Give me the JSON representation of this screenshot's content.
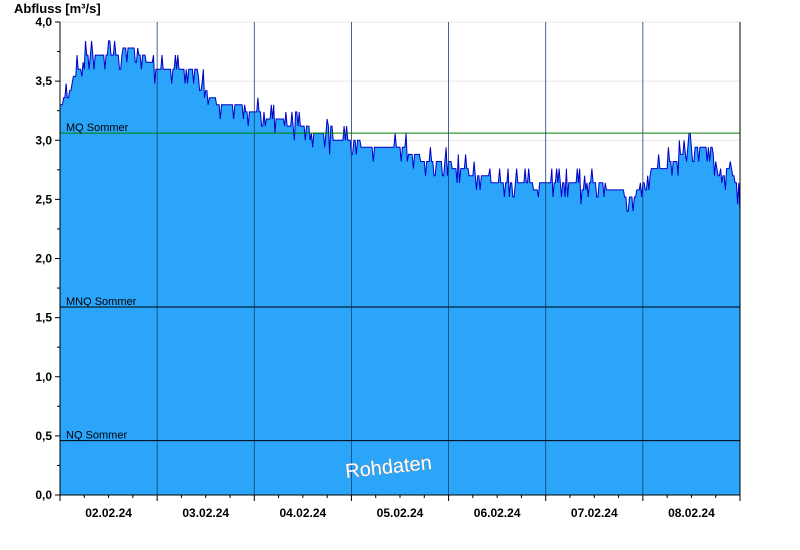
{
  "chart_data": {
    "type": "area",
    "ylabel": "Abfluss [m³/s]",
    "ylim": [
      0,
      4.0
    ],
    "yticks": [
      "0,0",
      "0,5",
      "1,0",
      "1,5",
      "2,0",
      "2,5",
      "3,0",
      "3,5",
      "4,0"
    ],
    "ytick_values": [
      0,
      0.5,
      1.0,
      1.5,
      2.0,
      2.5,
      3.0,
      3.5,
      4.0
    ],
    "xlim_days": [
      0,
      7
    ],
    "xtick_labels": [
      "02.02.24",
      "03.02.24",
      "04.02.24",
      "05.02.24",
      "06.02.24",
      "07.02.24",
      "08.02.24"
    ],
    "reference_lines": [
      {
        "label": "MQ Sommer",
        "value": 3.06,
        "color": "#008000"
      },
      {
        "label": "MNQ Sommer",
        "value": 1.59,
        "color": "#000000"
      },
      {
        "label": "NQ Sommer",
        "value": 0.46,
        "color": "#000000"
      }
    ],
    "watermark": "Rohdaten",
    "colors": {
      "fill": "#2aa5fa",
      "line": "#0000c8",
      "grid": "#1e3c7a"
    },
    "series": [
      {
        "x": [
          0.0,
          0.1,
          0.15,
          0.2,
          0.25,
          0.35,
          0.55,
          0.65,
          0.8,
          1.0,
          1.2,
          1.4,
          1.55,
          1.7,
          1.85,
          2.0,
          2.15,
          2.3,
          2.45,
          2.55,
          2.7,
          2.85,
          3.0,
          3.15,
          3.3,
          3.5,
          3.7,
          3.85,
          4.0,
          4.15,
          4.3,
          4.5,
          4.6,
          4.75,
          4.9,
          5.0,
          5.2,
          5.4,
          5.5,
          5.65,
          5.8,
          5.9,
          6.0,
          6.1,
          6.3,
          6.5,
          6.7,
          6.8,
          6.9,
          7.0
        ],
        "y": [
          3.3,
          3.4,
          3.55,
          3.6,
          3.7,
          3.73,
          3.73,
          3.75,
          3.75,
          3.6,
          3.58,
          3.6,
          3.35,
          3.3,
          3.28,
          3.25,
          3.2,
          3.15,
          3.1,
          3.1,
          3.05,
          3.0,
          3.0,
          2.95,
          2.95,
          2.95,
          2.85,
          2.8,
          2.8,
          2.75,
          2.7,
          2.65,
          2.65,
          2.65,
          2.6,
          2.65,
          2.65,
          2.6,
          2.65,
          2.6,
          2.55,
          2.5,
          2.65,
          2.75,
          2.8,
          2.95,
          2.95,
          2.65,
          2.8,
          2.5
        ]
      }
    ]
  }
}
